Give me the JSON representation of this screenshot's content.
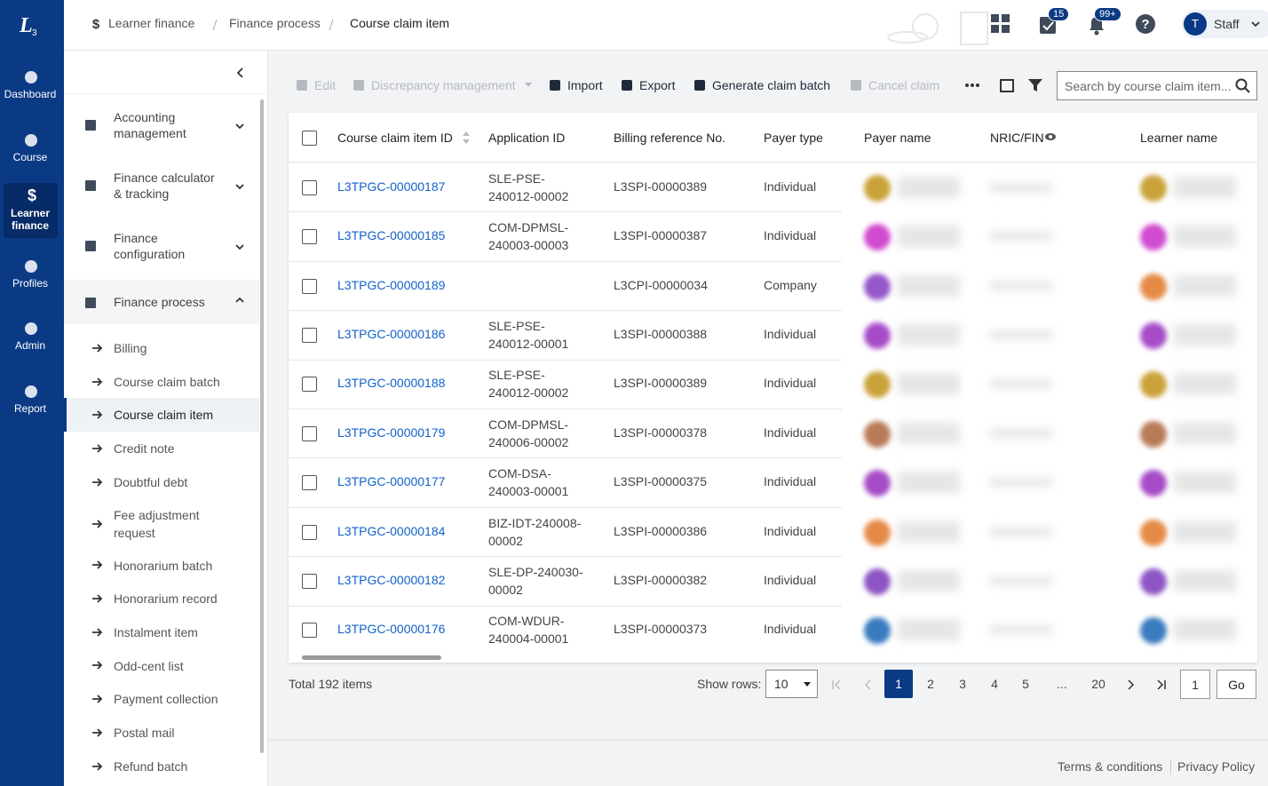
{
  "nav_rail": {
    "items": [
      "Dashboard",
      "Course",
      "Learner finance",
      "Profiles",
      "Admin",
      "Report"
    ]
  },
  "breadcrumb": [
    "Learner finance",
    "Finance process",
    "Course claim item"
  ],
  "header": {
    "task_badge": "15",
    "notification_badge": "99+",
    "user_initial": "T",
    "user_name": "Staff"
  },
  "sidebar": {
    "groups": [
      "Accounting management",
      "Finance calculator & tracking",
      "Finance configuration",
      "Finance process"
    ],
    "items": [
      "Billing",
      "Course claim batch",
      "Course claim item",
      "Credit note",
      "Doubtful debt",
      "Fee adjustment request",
      "Honorarium batch",
      "Honorarium record",
      "Instalment item",
      "Odd-cent list",
      "Payment collection",
      "Postal mail",
      "Refund batch"
    ]
  },
  "toolbar": {
    "actions": [
      "Edit",
      "Discrepancy management",
      "Import",
      "Export",
      "Generate claim batch",
      "Cancel claim"
    ],
    "search_placeholder": "Search by course claim item..."
  },
  "table": {
    "columns": [
      "Course claim item ID",
      "Application ID",
      "Billing reference No.",
      "Payer type",
      "Payer name",
      "NRIC/FIN",
      "Learner name"
    ],
    "rows": [
      [
        "L3TPGC-00000187",
        "SLE-PSE-240012-00002",
        "L3SPI-00000389",
        "Individual"
      ],
      [
        "L3TPGC-00000185",
        "COM-DPMSL-240003-00003",
        "L3SPI-00000387",
        "Individual"
      ],
      [
        "L3TPGC-00000189",
        null,
        "L3CPI-00000034",
        "Company"
      ],
      [
        "L3TPGC-00000186",
        "SLE-PSE-240012-00001",
        "L3SPI-00000388",
        "Individual"
      ],
      [
        "L3TPGC-00000188",
        "SLE-PSE-240012-00002",
        "L3SPI-00000389",
        "Individual"
      ],
      [
        "L3TPGC-00000179",
        "COM-DPMSL-240006-00002",
        "L3SPI-00000378",
        "Individual"
      ],
      [
        "L3TPGC-00000177",
        "COM-DSA-240003-00001",
        "L3SPI-00000375",
        "Individual"
      ],
      [
        "L3TPGC-00000184",
        "BIZ-IDT-240008-00002",
        "L3SPI-00000386",
        "Individual"
      ],
      [
        "L3TPGC-00000182",
        "SLE-DP-240030-00002",
        "L3SPI-00000382",
        "Individual"
      ],
      [
        "L3TPGC-00000176",
        "COM-WDUR-240004-00001",
        "L3SPI-00000373",
        "Individual"
      ]
    ]
  },
  "pagination": {
    "total": "Total 192 items",
    "show_rows_label": "Show rows:",
    "page_size": "10",
    "pages": [
      "1",
      "2",
      "3",
      "4",
      "5",
      "...",
      "20"
    ],
    "jump_value": "1",
    "go": "Go"
  },
  "footer": {
    "links": [
      "Terms & conditions",
      "Privacy Policy"
    ]
  }
}
